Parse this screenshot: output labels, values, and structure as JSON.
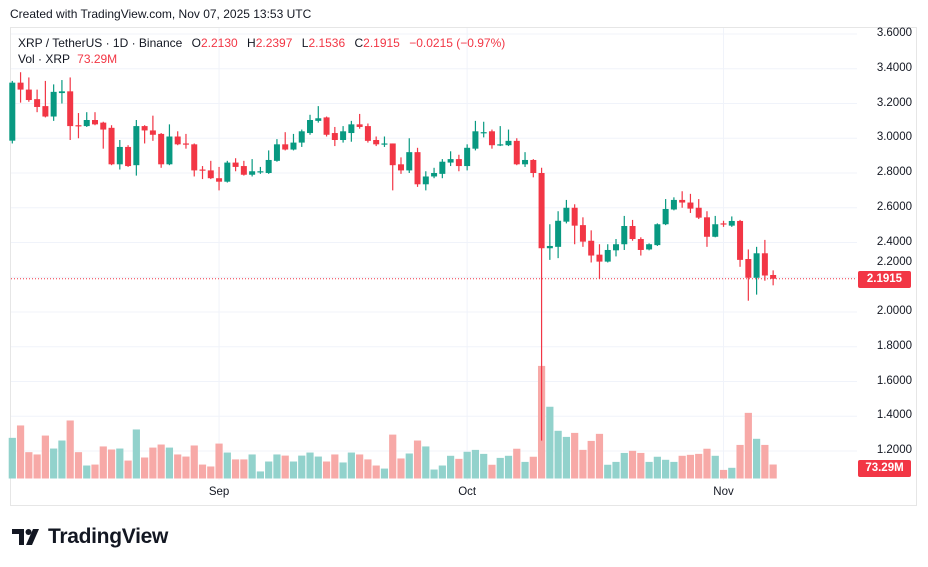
{
  "watermark": "Created with TradingView.com, Nov 07, 2025 13:53 UTC",
  "legend": {
    "symbol": "XRP / TetherUS · 1D · Binance",
    "o_label": "O",
    "o": "2.2130",
    "h_label": "H",
    "h": "2.2397",
    "l_label": "L",
    "l": "2.1536",
    "c_label": "C",
    "c": "2.1915",
    "change": "−0.0215 (−0.97%)",
    "vol_label": "Vol · XRP",
    "vol": "73.29M"
  },
  "price_axis": {
    "ticks": [
      "3.6000",
      "3.4000",
      "3.2000",
      "3.0000",
      "2.8000",
      "2.6000",
      "2.4000",
      "2.2000",
      "2.0000",
      "1.8000",
      "1.6000",
      "1.4000",
      "1.2000"
    ],
    "last_price_label": "2.1915",
    "last_volume_label": "73.29M"
  },
  "time_axis": {
    "ticks": [
      "Sep",
      "Oct",
      "Nov"
    ]
  },
  "logo": {
    "text": "TradingView"
  },
  "colors": {
    "up": "#089981",
    "down": "#f23645",
    "vol_up": "#92d2cc",
    "vol_down": "#f7a9a7",
    "last_price": "#f23645"
  },
  "chart_data": {
    "type": "candlestick",
    "title": "XRP / TetherUS · 1D · Binance",
    "ylim": [
      1.1,
      3.65
    ],
    "grid": true,
    "columns": [
      "date",
      "open",
      "high",
      "low",
      "close",
      "volume_M"
    ],
    "candles": [
      [
        "2025-08-07",
        2.986,
        3.33,
        2.97,
        3.32,
        213
      ],
      [
        "2025-08-08",
        3.32,
        3.38,
        3.205,
        3.28,
        278
      ],
      [
        "2025-08-09",
        3.28,
        3.35,
        3.21,
        3.22,
        138
      ],
      [
        "2025-08-10",
        3.225,
        3.28,
        3.15,
        3.18,
        126
      ],
      [
        "2025-08-11",
        3.185,
        3.33,
        3.12,
        3.125,
        225
      ],
      [
        "2025-08-12",
        3.125,
        3.31,
        3.1,
        3.267,
        157
      ],
      [
        "2025-08-13",
        3.26,
        3.335,
        3.2,
        3.27,
        199
      ],
      [
        "2025-08-14",
        3.27,
        3.35,
        2.99,
        3.07,
        304
      ],
      [
        "2025-08-15",
        3.075,
        3.145,
        3.0,
        3.07,
        138
      ],
      [
        "2025-08-16",
        3.07,
        3.15,
        3.065,
        3.105,
        68
      ],
      [
        "2025-08-17",
        3.105,
        3.15,
        3.075,
        3.08,
        73
      ],
      [
        "2025-08-18",
        3.09,
        3.095,
        2.94,
        3.05,
        168
      ],
      [
        "2025-08-19",
        3.06,
        3.075,
        2.845,
        2.85,
        152
      ],
      [
        "2025-08-20",
        2.85,
        2.99,
        2.82,
        2.95,
        157
      ],
      [
        "2025-08-21",
        2.95,
        2.96,
        2.835,
        2.84,
        94
      ],
      [
        "2025-08-22",
        2.845,
        3.105,
        2.785,
        3.07,
        257
      ],
      [
        "2025-08-23",
        3.07,
        3.075,
        2.97,
        3.045,
        110
      ],
      [
        "2025-08-24",
        3.045,
        3.13,
        2.985,
        3.02,
        162
      ],
      [
        "2025-08-25",
        3.025,
        3.03,
        2.83,
        2.85,
        178
      ],
      [
        "2025-08-26",
        2.85,
        3.08,
        2.845,
        3.01,
        162
      ],
      [
        "2025-08-27",
        3.01,
        3.04,
        2.96,
        2.965,
        126
      ],
      [
        "2025-08-28",
        2.97,
        3.025,
        2.94,
        2.965,
        115
      ],
      [
        "2025-08-29",
        2.965,
        2.97,
        2.78,
        2.815,
        173
      ],
      [
        "2025-08-30",
        2.82,
        2.84,
        2.765,
        2.815,
        73
      ],
      [
        "2025-08-31",
        2.815,
        2.87,
        2.765,
        2.77,
        63
      ],
      [
        "2025-09-01",
        2.77,
        2.835,
        2.7,
        2.75,
        183
      ],
      [
        "2025-09-02",
        2.75,
        2.87,
        2.745,
        2.86,
        136
      ],
      [
        "2025-09-03",
        2.86,
        2.885,
        2.81,
        2.835,
        100
      ],
      [
        "2025-09-04",
        2.84,
        2.87,
        2.785,
        2.79,
        100
      ],
      [
        "2025-09-05",
        2.79,
        2.88,
        2.78,
        2.81,
        126
      ],
      [
        "2025-09-06",
        2.81,
        2.835,
        2.795,
        2.81,
        37
      ],
      [
        "2025-09-07",
        2.8,
        2.93,
        2.795,
        2.875,
        89
      ],
      [
        "2025-09-08",
        2.87,
        2.995,
        2.865,
        2.965,
        126
      ],
      [
        "2025-09-09",
        2.965,
        3.035,
        2.93,
        2.935,
        120
      ],
      [
        "2025-09-10",
        2.935,
        3.025,
        2.93,
        2.975,
        89
      ],
      [
        "2025-09-11",
        2.975,
        3.05,
        2.95,
        3.04,
        120
      ],
      [
        "2025-09-12",
        3.03,
        3.135,
        3.02,
        3.105,
        136
      ],
      [
        "2025-09-13",
        3.1,
        3.185,
        3.09,
        3.115,
        115
      ],
      [
        "2025-09-14",
        3.12,
        3.125,
        3.01,
        3.02,
        89
      ],
      [
        "2025-09-15",
        3.03,
        3.065,
        2.955,
        2.99,
        126
      ],
      [
        "2025-09-16",
        2.99,
        3.07,
        2.975,
        3.04,
        84
      ],
      [
        "2025-09-17",
        3.03,
        3.1,
        2.98,
        3.08,
        136
      ],
      [
        "2025-09-18",
        3.08,
        3.14,
        3.055,
        3.065,
        126
      ],
      [
        "2025-09-19",
        3.07,
        3.085,
        2.975,
        2.985,
        100
      ],
      [
        "2025-09-20",
        2.99,
        3.01,
        2.955,
        2.965,
        68
      ],
      [
        "2025-09-21",
        2.97,
        3.01,
        2.95,
        2.97,
        52
      ],
      [
        "2025-09-22",
        2.97,
        2.97,
        2.7,
        2.845,
        230
      ],
      [
        "2025-09-23",
        2.85,
        2.89,
        2.795,
        2.815,
        105
      ],
      [
        "2025-09-24",
        2.815,
        3.0,
        2.8,
        2.92,
        131
      ],
      [
        "2025-09-25",
        2.92,
        2.945,
        2.72,
        2.735,
        199
      ],
      [
        "2025-09-26",
        2.735,
        2.81,
        2.7,
        2.78,
        168
      ],
      [
        "2025-09-27",
        2.78,
        2.83,
        2.77,
        2.8,
        47
      ],
      [
        "2025-09-28",
        2.795,
        2.88,
        2.77,
        2.865,
        68
      ],
      [
        "2025-09-29",
        2.86,
        2.925,
        2.84,
        2.88,
        119
      ],
      [
        "2025-09-30",
        2.88,
        2.905,
        2.81,
        2.84,
        103
      ],
      [
        "2025-10-01",
        2.84,
        2.965,
        2.815,
        2.945,
        140
      ],
      [
        "2025-10-02",
        2.94,
        3.1,
        2.93,
        3.04,
        150
      ],
      [
        "2025-10-03",
        3.03,
        3.095,
        3.005,
        3.035,
        129
      ],
      [
        "2025-10-04",
        3.04,
        3.05,
        2.94,
        2.96,
        72
      ],
      [
        "2025-10-05",
        2.96,
        3.07,
        2.955,
        2.965,
        108
      ],
      [
        "2025-10-06",
        2.96,
        3.05,
        2.955,
        2.985,
        119
      ],
      [
        "2025-10-07",
        2.985,
        3.0,
        2.845,
        2.85,
        156
      ],
      [
        "2025-10-08",
        2.85,
        2.92,
        2.835,
        2.875,
        87
      ],
      [
        "2025-10-09",
        2.875,
        2.88,
        2.775,
        2.8,
        114
      ],
      [
        "2025-10-10",
        2.8,
        2.83,
        1.26,
        2.367,
        590
      ],
      [
        "2025-10-11",
        2.367,
        2.505,
        2.3,
        2.38,
        376
      ],
      [
        "2025-10-12",
        2.375,
        2.58,
        2.31,
        2.525,
        250
      ],
      [
        "2025-10-13",
        2.52,
        2.645,
        2.51,
        2.6,
        218
      ],
      [
        "2025-10-14",
        2.6,
        2.62,
        2.39,
        2.497,
        239
      ],
      [
        "2025-10-15",
        2.5,
        2.545,
        2.375,
        2.405,
        150
      ],
      [
        "2025-10-16",
        2.41,
        2.47,
        2.285,
        2.325,
        197
      ],
      [
        "2025-10-17",
        2.33,
        2.39,
        2.19,
        2.29,
        234
      ],
      [
        "2025-10-18",
        2.29,
        2.39,
        2.285,
        2.357,
        72
      ],
      [
        "2025-10-19",
        2.355,
        2.42,
        2.32,
        2.39,
        87
      ],
      [
        "2025-10-20",
        2.39,
        2.553,
        2.357,
        2.495,
        134
      ],
      [
        "2025-10-21",
        2.495,
        2.53,
        2.41,
        2.42,
        145
      ],
      [
        "2025-10-22",
        2.42,
        2.43,
        2.325,
        2.357,
        134
      ],
      [
        "2025-10-23",
        2.36,
        2.395,
        2.355,
        2.39,
        87
      ],
      [
        "2025-10-24",
        2.385,
        2.51,
        2.38,
        2.505,
        114
      ],
      [
        "2025-10-25",
        2.505,
        2.65,
        2.5,
        2.593,
        98
      ],
      [
        "2025-10-26",
        2.59,
        2.66,
        2.585,
        2.645,
        87
      ],
      [
        "2025-10-27",
        2.645,
        2.695,
        2.6,
        2.63,
        119
      ],
      [
        "2025-10-28",
        2.63,
        2.68,
        2.57,
        2.595,
        124
      ],
      [
        "2025-10-29",
        2.6,
        2.65,
        2.535,
        2.543,
        129
      ],
      [
        "2025-10-30",
        2.545,
        2.58,
        2.375,
        2.433,
        156
      ],
      [
        "2025-10-31",
        2.433,
        2.553,
        2.43,
        2.505,
        119
      ],
      [
        "2025-11-01",
        2.51,
        2.525,
        2.49,
        2.505,
        45
      ],
      [
        "2025-11-02",
        2.497,
        2.55,
        2.49,
        2.524,
        56
      ],
      [
        "2025-11-03",
        2.524,
        2.53,
        2.26,
        2.3,
        176
      ],
      [
        "2025-11-04",
        2.305,
        2.36,
        2.065,
        2.197,
        344
      ],
      [
        "2025-11-05",
        2.197,
        2.375,
        2.1,
        2.338,
        208
      ],
      [
        "2025-11-06",
        2.338,
        2.415,
        2.18,
        2.21,
        176
      ],
      [
        "2025-11-07",
        2.213,
        2.2397,
        2.1536,
        2.1915,
        73.29
      ]
    ]
  }
}
